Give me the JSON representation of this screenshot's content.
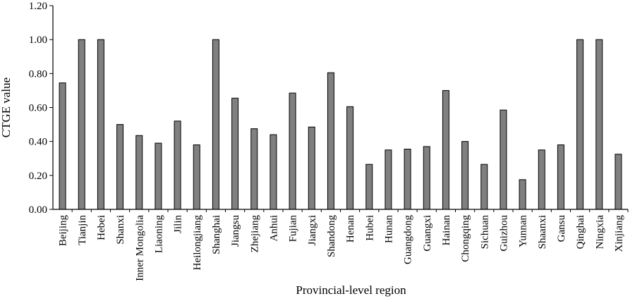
{
  "chart_data": {
    "type": "bar",
    "xlabel": "Provincial-level region",
    "ylabel": "CTGE value",
    "ylim": [
      0,
      1.2
    ],
    "yticks": [
      "0.00",
      "0.20",
      "0.40",
      "0.60",
      "0.80",
      "1.00",
      "1.20"
    ],
    "grid": false,
    "legend": "none",
    "bar_color": "#808080",
    "categories": [
      "Beijing",
      "Tianjin",
      "Hebei",
      "Shanxi",
      "Inner Mongolia",
      "Liaoning",
      "Jilin",
      "Heilongjiang",
      "Shanghai",
      "Jiangsu",
      "Zhejiang",
      "Anhui",
      "Fujian",
      "Jiangxi",
      "Shandong",
      "Henan",
      "Hubei",
      "Hunan",
      "Guangdong",
      "Guangxi",
      "Hainan",
      "Chongqing",
      "Sichuan",
      "Guizhou",
      "Yunnan",
      "Shaanxi",
      "Gansu",
      "Qinghai",
      "Ningxia",
      "Xinjiang"
    ],
    "values": [
      0.745,
      1.0,
      1.0,
      0.5,
      0.435,
      0.39,
      0.52,
      0.38,
      1.0,
      0.655,
      0.475,
      0.44,
      0.685,
      0.485,
      0.805,
      0.605,
      0.265,
      0.35,
      0.355,
      0.37,
      0.7,
      0.4,
      0.265,
      0.585,
      0.175,
      0.35,
      0.38,
      1.0,
      1.0,
      0.325
    ]
  }
}
